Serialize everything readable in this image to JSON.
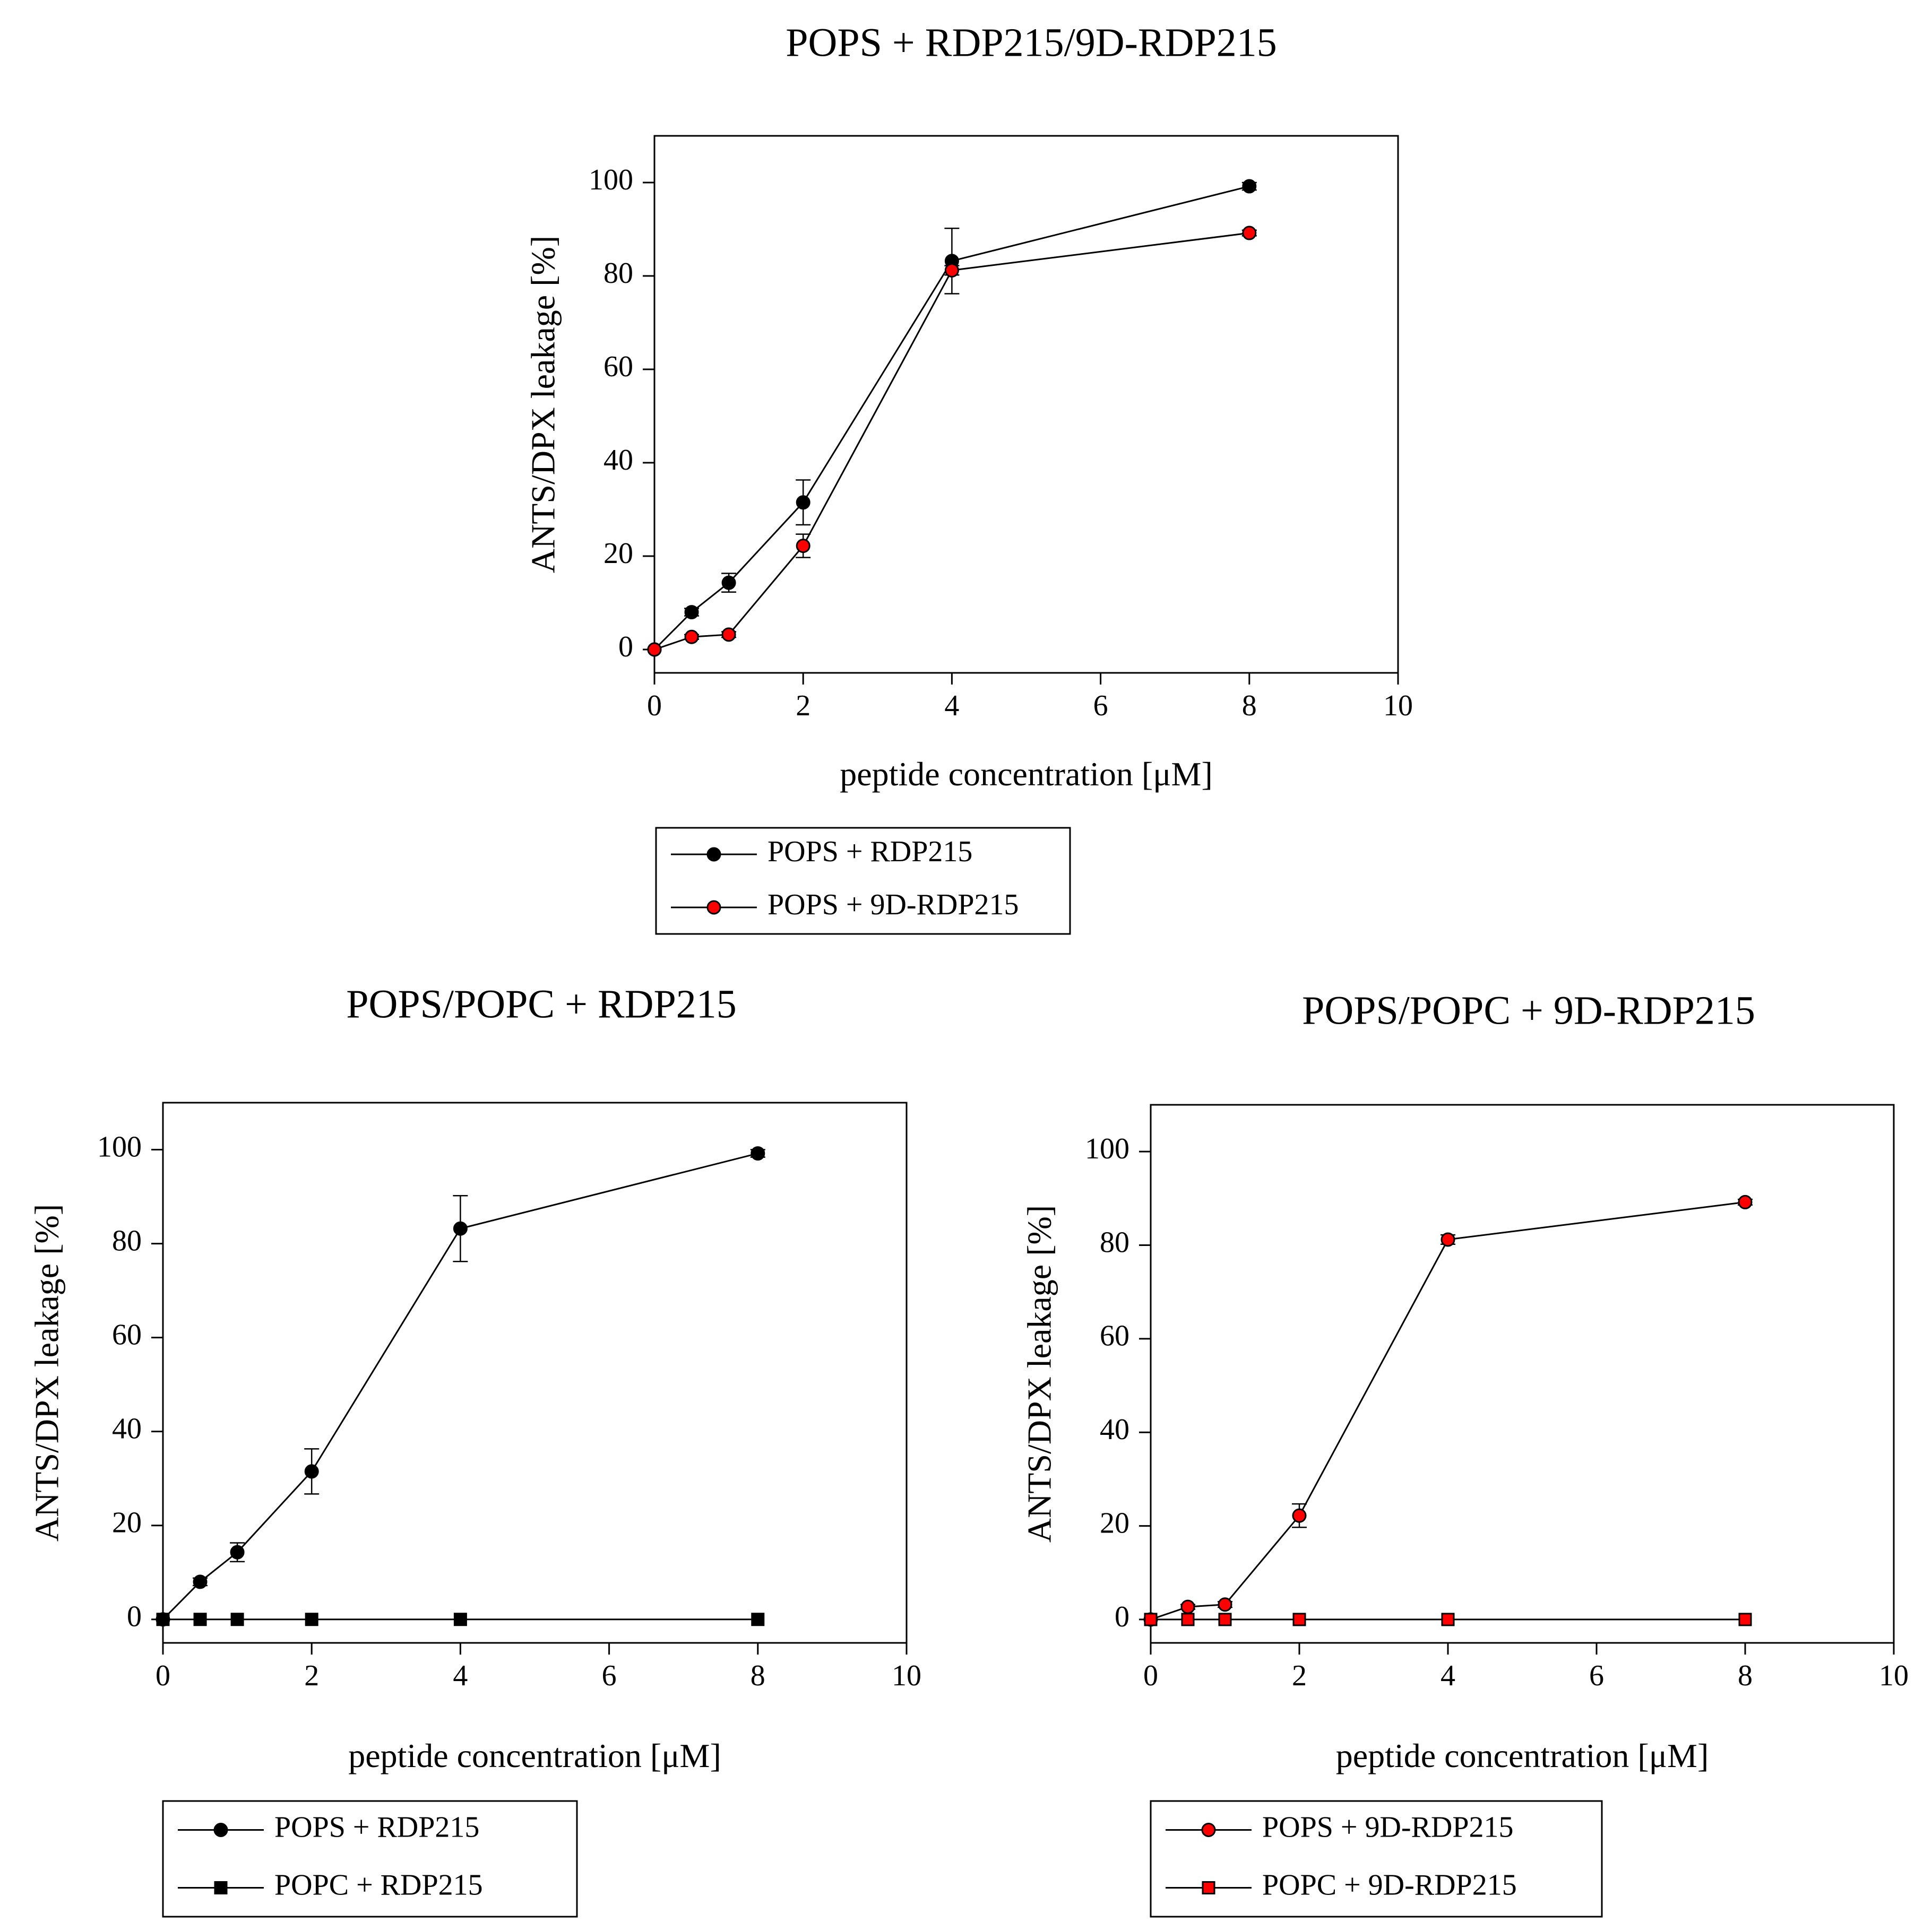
{
  "colors": {
    "black": "#000000",
    "red": "#ff0000",
    "axis": "#000000",
    "background": "#ffffff"
  },
  "chart_data": [
    {
      "type": "line",
      "title": "POPS + RDP215/9D-RDP215",
      "xlabel": "peptide concentration [μM]",
      "ylabel": "ANTS/DPX leakage [%]",
      "xlim": [
        0,
        10
      ],
      "ylim": [
        -5,
        110
      ],
      "xticks": [
        0,
        2,
        4,
        6,
        8,
        10
      ],
      "yticks": [
        0,
        20,
        40,
        60,
        80,
        100
      ],
      "legend_position": "below",
      "series": [
        {
          "name": "POPS + RDP215",
          "marker": "circle",
          "color": "#000000",
          "x": [
            0,
            0.5,
            1,
            2,
            4,
            8
          ],
          "y": [
            0,
            8,
            14.3,
            31.5,
            83.2,
            99.2
          ],
          "err": [
            0,
            0.8,
            2.0,
            4.8,
            7.0,
            0.8
          ]
        },
        {
          "name": "POPS + 9D-RDP215",
          "marker": "circle",
          "color": "#ff0000",
          "x": [
            0,
            0.5,
            1,
            2,
            4,
            8
          ],
          "y": [
            0,
            2.7,
            3.2,
            22.2,
            81.2,
            89.2
          ],
          "err": [
            0,
            0.5,
            0.6,
            2.5,
            1.0,
            0.6
          ]
        }
      ]
    },
    {
      "type": "line",
      "title": "POPS/POPC + RDP215",
      "xlabel": "peptide concentration [μM]",
      "ylabel": "ANTS/DPX leakage [%]",
      "xlim": [
        0,
        10
      ],
      "ylim": [
        -5,
        110
      ],
      "xticks": [
        0,
        2,
        4,
        6,
        8,
        10
      ],
      "yticks": [
        0,
        20,
        40,
        60,
        80,
        100
      ],
      "legend_position": "below",
      "series": [
        {
          "name": "POPS + RDP215",
          "marker": "circle",
          "color": "#000000",
          "x": [
            0,
            0.5,
            1,
            2,
            4,
            8
          ],
          "y": [
            0,
            8,
            14.3,
            31.5,
            83.2,
            99.2
          ],
          "err": [
            0,
            0.8,
            2.0,
            4.8,
            7.0,
            0.8
          ]
        },
        {
          "name": "POPC + RDP215",
          "marker": "square",
          "color": "#000000",
          "x": [
            0,
            0.5,
            1,
            2,
            4,
            8
          ],
          "y": [
            0,
            0,
            0,
            0,
            0,
            0
          ],
          "err": [
            0,
            0,
            0,
            0,
            0,
            0
          ]
        }
      ]
    },
    {
      "type": "line",
      "title": "POPS/POPC + 9D-RDP215",
      "xlabel": "peptide concentration [μM]",
      "ylabel": "ANTS/DPX leakage [%]",
      "xlim": [
        0,
        10
      ],
      "ylim": [
        -5,
        110
      ],
      "xticks": [
        0,
        2,
        4,
        6,
        8,
        10
      ],
      "yticks": [
        0,
        20,
        40,
        60,
        80,
        100
      ],
      "legend_position": "below",
      "series": [
        {
          "name": "POPS + 9D-RDP215",
          "marker": "circle",
          "color": "#ff0000",
          "x": [
            0,
            0.5,
            1,
            2,
            4,
            8
          ],
          "y": [
            0,
            2.7,
            3.2,
            22.2,
            81.2,
            89.2
          ],
          "err": [
            0,
            0.5,
            0.6,
            2.5,
            1.0,
            0.6
          ]
        },
        {
          "name": "POPC + 9D-RDP215",
          "marker": "square",
          "color": "#ff0000",
          "x": [
            0,
            0.5,
            1,
            2,
            4,
            8
          ],
          "y": [
            0,
            0,
            0,
            0,
            0,
            0
          ],
          "err": [
            0,
            0,
            0,
            0,
            0,
            0
          ]
        }
      ]
    }
  ]
}
